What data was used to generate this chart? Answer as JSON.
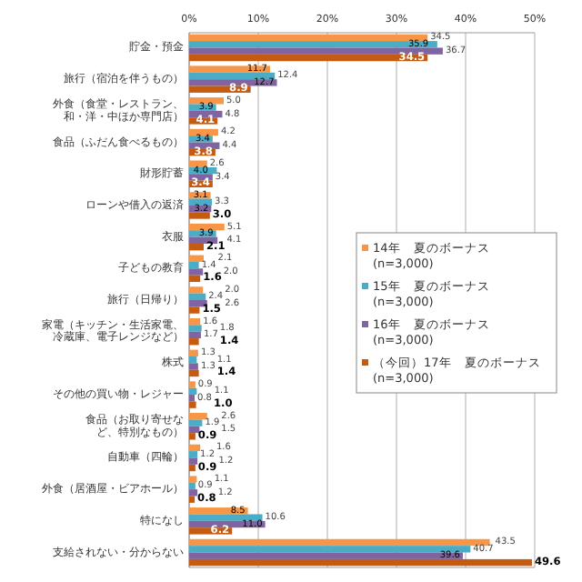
{
  "chart_data": {
    "type": "bar",
    "orientation": "horizontal",
    "categories": [
      "貯金・預金",
      "旅行（宿泊を伴うもの）",
      "外食（食堂・レストラン、和・洋・中ほか専門店）",
      "食品（ふだん食べるもの）",
      "財形貯蓄",
      "ローンや借入の返済",
      "衣服",
      "子どもの教育",
      "旅行（日帰り）",
      "家電（キッチン・生活家電、冷蔵庫、電子レンジなど）",
      "株式",
      "その他の買い物・レジャー",
      "食品（お取り寄せなど、特別なもの）",
      "自動車（四輪）",
      "外食（居酒屋・ビアホール）",
      "特になし",
      "支給されない・分からない"
    ],
    "series": [
      {
        "name": "14年　夏のボーナス\n(n=3,000)",
        "color": "#f79646",
        "values": [
          34.5,
          11.7,
          5.0,
          4.2,
          2.6,
          3.1,
          5.1,
          2.1,
          2.0,
          1.6,
          1.3,
          0.9,
          2.6,
          1.6,
          1.1,
          8.5,
          43.5
        ],
        "value_labels": [
          "34.5",
          "11.7",
          "5.0",
          "4.2",
          "2.6",
          "3.1",
          "5.1",
          "2.1",
          "2.0",
          "1.6",
          "1.3",
          "0.9",
          "2.6",
          "1.6",
          "1.1",
          "8.5",
          "43.5"
        ]
      },
      {
        "name": "15年　夏のボーナス\n(n=3,000)",
        "color": "#4bacc6",
        "values": [
          35.9,
          12.4,
          3.9,
          3.4,
          4.0,
          3.3,
          3.9,
          1.4,
          2.4,
          1.8,
          1.1,
          1.1,
          1.9,
          1.2,
          0.9,
          10.6,
          40.7
        ],
        "value_labels": [
          "35.9",
          "12.4",
          "3.9",
          "3.4",
          "4.0",
          "3.3",
          "3.9",
          "1.4",
          "2.4",
          "1.8",
          "1.1",
          "1.1",
          "1.9",
          "1.2",
          "0.9",
          "10.6",
          "40.7"
        ]
      },
      {
        "name": "16年　夏のボーナス\n(n=3,000)",
        "color": "#8064a2",
        "values": [
          36.7,
          12.7,
          4.8,
          4.4,
          3.4,
          3.2,
          4.1,
          2.0,
          2.6,
          1.7,
          1.3,
          0.8,
          1.5,
          1.2,
          1.2,
          11.0,
          39.6
        ],
        "value_labels": [
          "36.7",
          "12.7",
          "4.8",
          "4.4",
          "3.4",
          "3.2",
          "4.1",
          "2.0",
          "2.6",
          "1.7",
          "1.3",
          "0.8",
          "1.5",
          "1.2",
          "1.2",
          "11.0",
          "39.6"
        ]
      },
      {
        "name": "（今回）17年　夏のボーナス\n(n=3,000)",
        "color": "#c55a11",
        "values": [
          34.5,
          8.9,
          4.1,
          3.8,
          3.4,
          3.0,
          2.1,
          1.6,
          1.5,
          1.4,
          1.4,
          1.0,
          0.9,
          0.9,
          0.8,
          6.2,
          49.6
        ],
        "value_labels": [
          "34.5",
          "8.9",
          "4.1",
          "3.8",
          "3.4",
          "3.0",
          "2.1",
          "1.6",
          "1.5",
          "1.4",
          "1.4",
          "1.0",
          "0.9",
          "0.9",
          "0.8",
          "6.2",
          "49.6"
        ]
      }
    ],
    "xlim": [
      0,
      50
    ],
    "xticks": [
      {
        "value": 0,
        "label": "0%"
      },
      {
        "value": 10,
        "label": "10%"
      },
      {
        "value": 20,
        "label": "20%"
      },
      {
        "value": 30,
        "label": "30%"
      },
      {
        "value": 40,
        "label": "40%"
      },
      {
        "value": 50,
        "label": "50%"
      }
    ],
    "grid": "x",
    "legend": "right"
  }
}
